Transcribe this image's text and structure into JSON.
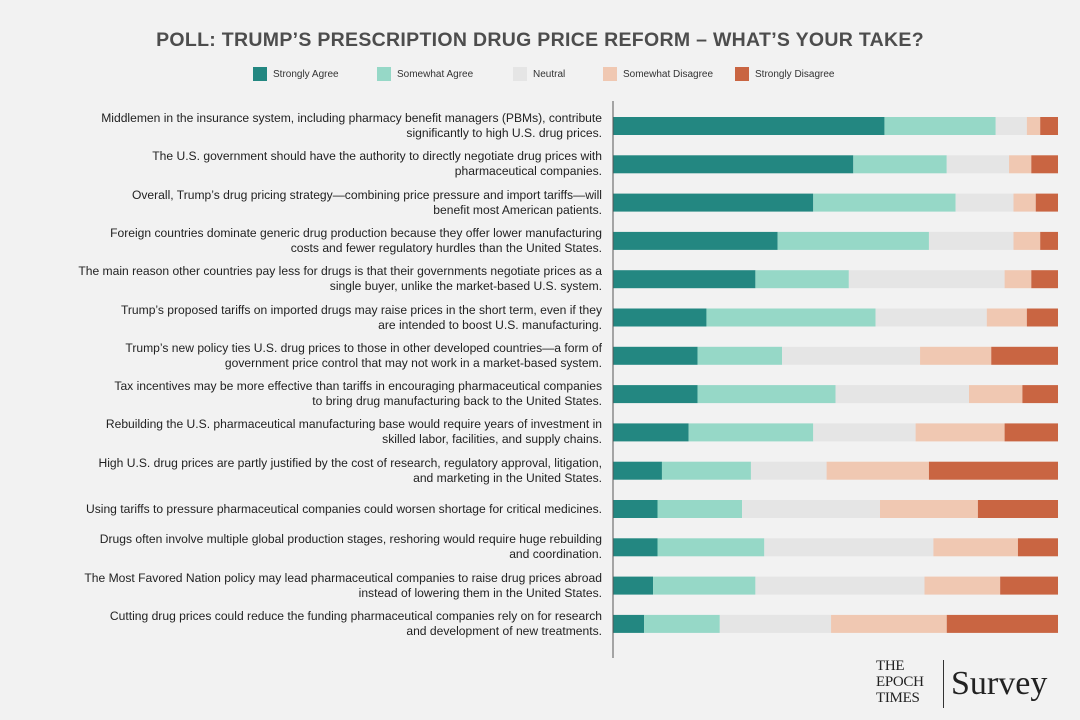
{
  "chart_data": {
    "type": "stacked-bar-horizontal",
    "title": "POLL: TRUMP’S PRESCRIPTION DRUG PRICE REFORM – WHAT’S YOUR TAKE?",
    "legend_position": "top",
    "colors": [
      "#238781",
      "#96d8c7",
      "#e5e5e5",
      "#f0c8b2",
      "#c96542"
    ],
    "series_names": [
      "Strongly Agree",
      "Somewhat Agree",
      "Neutral",
      "Somewhat Disagree",
      "Strongly Disagree"
    ],
    "xlim": [
      0,
      100
    ],
    "categories": [
      "Middlemen in the insurance system, including pharmacy benefit managers (PBMs), contribute significantly to high U.S. drug prices.",
      "The U.S. government should have the authority to directly negotiate drug prices with pharmaceutical companies.",
      "Overall, Trump’s drug pricing strategy—combining price pressure and import tariffs—will benefit most American patients.",
      "Foreign countries dominate generic drug production because they offer lower manufacturing costs and fewer regulatory hurdles than the United States.",
      "The main reason other countries pay less for drugs is that their governments negotiate prices as a single buyer, unlike the market-based U.S. system.",
      "Trump’s proposed tariffs on imported drugs may raise prices in the short term, even if they are intended to boost U.S. manufacturing.",
      "Trump’s new policy ties U.S. drug prices to those in other developed countries—a form of government price control that may not work in a market-based system.",
      "Tax incentives may be more effective than tariffs in encouraging pharmaceutical companies to bring drug manufacturing back to the United States.",
      "Rebuilding the U.S. pharmaceutical manufacturing base would require years of investment in skilled labor, facilities, and supply chains.",
      "High U.S. drug prices are partly justified by the cost of research, regulatory approval, litigation, and marketing in the United States.",
      "Using tariffs to pressure pharmaceutical companies could worsen shortage for critical medicines.",
      "Drugs often involve multiple global production stages, reshoring would require huge rebuilding and coordination.",
      "The Most Favored Nation policy may lead pharmaceutical companies to raise drug prices abroad instead of lowering them in the United States.",
      "Cutting drug prices could reduce the funding pharmaceutical companies rely on for research and development of new treatments."
    ],
    "labels_wrapped": [
      [
        "Middlemen in the insurance system, including pharmacy benefit managers (PBMs), contribute",
        "significantly to high U.S. drug prices."
      ],
      [
        "The U.S. government should have the authority to directly negotiate drug prices with",
        "pharmaceutical companies."
      ],
      [
        "Overall, Trump’s drug pricing strategy—combining price pressure and import tariffs—will",
        "benefit most American patients."
      ],
      [
        "Foreign countries dominate generic drug production because they offer lower manufacturing",
        "costs and fewer regulatory hurdles than the United States."
      ],
      [
        "The main reason other countries pay less for drugs is that their governments negotiate prices as a",
        "single buyer, unlike the market-based U.S. system."
      ],
      [
        "Trump’s proposed tariffs on imported drugs may raise prices in the short term, even if they",
        "are intended to boost U.S. manufacturing."
      ],
      [
        "Trump’s new policy ties U.S. drug prices to those in other developed countries—a form of",
        "government price control that may not work in a market-based system."
      ],
      [
        "Tax incentives may be more effective than tariffs in encouraging pharmaceutical companies",
        "to bring drug manufacturing back to the United States."
      ],
      [
        "Rebuilding the U.S. pharmaceutical manufacturing base would require years of investment in",
        "skilled labor, facilities, and supply chains."
      ],
      [
        "High U.S. drug prices are partly justified by the cost of research, regulatory approval, litigation,",
        "and marketing in the United States."
      ],
      [
        "Using tariffs to pressure pharmaceutical companies could worsen shortage for critical medicines."
      ],
      [
        "Drugs often involve multiple global production stages, reshoring would require huge rebuilding",
        "and coordination."
      ],
      [
        "The Most Favored Nation policy may lead pharmaceutical companies to raise drug prices abroad",
        "instead of lowering them in the United States."
      ],
      [
        "Cutting drug prices could reduce the funding pharmaceutical companies rely on for research",
        "and development of new treatments."
      ]
    ],
    "series": [
      {
        "name": "Strongly Agree",
        "values": [
          61,
          54,
          45,
          37,
          32,
          21,
          19,
          19,
          17,
          11,
          10,
          10,
          9,
          7
        ]
      },
      {
        "name": "Somewhat Agree",
        "values": [
          25,
          21,
          32,
          34,
          21,
          38,
          19,
          31,
          28,
          20,
          19,
          24,
          23,
          17
        ]
      },
      {
        "name": "Neutral",
        "values": [
          7,
          14,
          13,
          19,
          35,
          25,
          31,
          30,
          23,
          17,
          31,
          38,
          38,
          25
        ]
      },
      {
        "name": "Somewhat Disagree",
        "values": [
          3,
          5,
          5,
          6,
          6,
          9,
          16,
          12,
          20,
          23,
          22,
          19,
          17,
          26
        ]
      },
      {
        "name": "Strongly Disagree",
        "values": [
          4,
          6,
          5,
          4,
          6,
          7,
          15,
          8,
          12,
          29,
          18,
          9,
          13,
          25
        ]
      }
    ]
  },
  "branding": {
    "publisher_lines": [
      "THE",
      "EPOCH",
      "TIMES"
    ],
    "product": "Survey"
  }
}
